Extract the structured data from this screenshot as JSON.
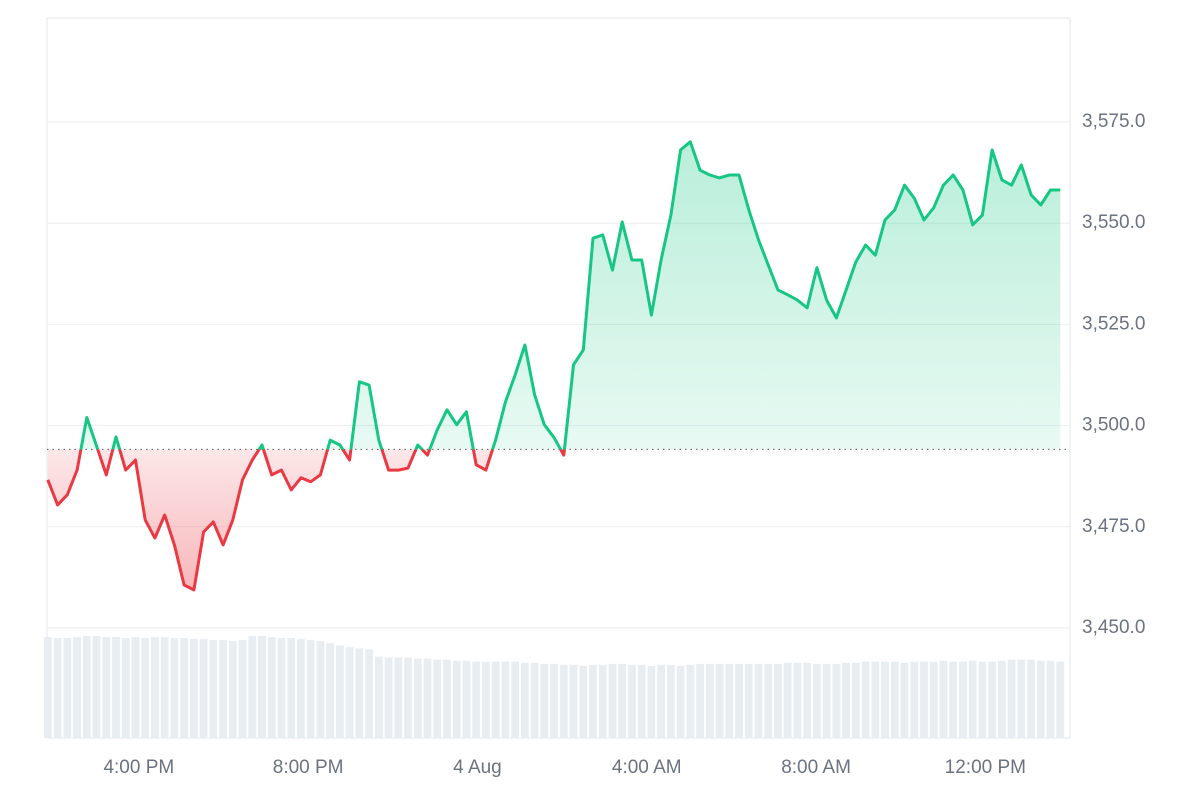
{
  "chart_data": {
    "type": "line",
    "x": [
      13.85,
      14.08,
      14.31,
      14.54,
      14.77,
      15,
      15.23,
      15.46,
      15.69,
      15.92,
      16.15,
      16.38,
      16.61,
      16.84,
      17.07,
      17.3,
      17.53,
      17.76,
      17.99,
      18.22,
      18.45,
      18.68,
      18.91,
      19.14,
      19.37,
      19.6,
      19.83,
      20.06,
      20.29,
      20.52,
      20.75,
      20.98,
      21.21,
      21.44,
      21.67,
      21.9,
      22.13,
      22.36,
      22.59,
      22.82,
      23.05,
      23.28,
      23.51,
      23.74,
      23.97,
      24.2,
      24.43,
      24.66,
      24.89,
      25.12,
      25.35,
      25.58,
      25.81,
      26.04,
      26.27,
      26.5,
      26.73,
      26.96,
      27.19,
      27.42,
      27.65,
      27.88,
      28.11,
      28.34,
      28.57,
      28.8,
      29.03,
      29.26,
      29.49,
      29.72,
      29.95,
      30.18,
      30.41,
      30.64,
      30.87,
      31.1,
      31.33,
      31.56,
      31.79,
      32.02,
      32.25,
      32.48,
      32.71,
      32.94,
      33.17,
      33.4,
      33.63,
      33.86,
      34.09,
      34.32,
      34.55,
      34.78,
      35.01,
      35.24,
      35.47,
      35.7,
      35.93,
      36.16,
      36.39,
      36.62,
      36.85,
      37.08,
      37.31,
      37.54,
      37.77
    ],
    "values": [
      3486.6,
      3480.4,
      3482.9,
      3489,
      3502,
      3495,
      3487.8,
      3497.2,
      3489,
      3491.5,
      3476.7,
      3472.2,
      3477.9,
      3470.5,
      3460.6,
      3459.4,
      3473.7,
      3476.2,
      3470.5,
      3476.7,
      3486.6,
      3491.5,
      3495.2,
      3487.8,
      3489,
      3484.1,
      3487.1,
      3486.1,
      3487.8,
      3496.4,
      3495.2,
      3491.5,
      3510.8,
      3510,
      3496.4,
      3489,
      3489,
      3489.5,
      3495.2,
      3492.7,
      3498.9,
      3503.9,
      3500.2,
      3503.4,
      3490.3,
      3489,
      3496.4,
      3505.8,
      3512.5,
      3519.9,
      3507.6,
      3500.2,
      3497,
      3492.7,
      3515,
      3518.7,
      3546.3,
      3547.1,
      3538.4,
      3550.3,
      3540.9,
      3540.9,
      3527.3,
      3540.9,
      3552,
      3568.1,
      3570.1,
      3563.1,
      3561.9,
      3561.2,
      3561.9,
      3561.9,
      3553.3,
      3545.9,
      3539.7,
      3533.5,
      3532.3,
      3531,
      3529.1,
      3539,
      3531,
      3526.6,
      3533.5,
      3540.4,
      3544.6,
      3542.1,
      3550.8,
      3553.3,
      3559.4,
      3556.2,
      3550.8,
      3553.8,
      3559.4,
      3561.9,
      3558.2,
      3549.6,
      3552,
      3568.1,
      3560.7,
      3559.4,
      3564.4,
      3557,
      3554.5,
      3558.2,
      3558.2
    ],
    "volume": [
      98,
      97,
      97,
      98,
      99,
      99,
      98,
      98,
      97,
      98,
      97,
      98,
      98,
      97,
      97,
      96,
      96,
      95,
      95,
      94,
      95,
      99,
      99,
      98,
      97,
      97,
      96,
      95,
      94,
      92,
      90,
      88,
      87,
      86,
      79,
      78,
      78,
      78,
      77,
      77,
      76,
      76,
      75,
      75,
      74,
      74,
      74,
      74,
      74,
      73,
      73,
      72,
      72,
      71,
      71,
      70,
      71,
      71,
      72,
      72,
      71,
      71,
      70,
      71,
      71,
      70,
      71,
      72,
      72,
      72,
      72,
      72,
      72,
      72,
      72,
      72,
      73,
      73,
      73,
      72,
      72,
      72,
      73,
      73,
      74,
      74,
      74,
      74,
      73,
      74,
      74,
      74,
      75,
      74,
      74,
      75,
      74,
      74,
      75,
      76,
      76,
      76,
      75,
      75,
      74
    ],
    "reference_line": 3494.1,
    "up_color": "#16c784",
    "down_color": "#ea3943",
    "volume_color": "#e8edf2",
    "xlim": [
      13.83,
      38.0
    ],
    "xticks": [
      {
        "value": 16,
        "label": "4:00 PM"
      },
      {
        "value": 20,
        "label": "8:00 PM"
      },
      {
        "value": 24,
        "label": "4 Aug"
      },
      {
        "value": 28,
        "label": "4:00 AM"
      },
      {
        "value": 32,
        "label": "8:00 AM"
      },
      {
        "value": 36,
        "label": "12:00 PM"
      }
    ],
    "ylim": [
      3422.8,
      3600.7
    ],
    "yticks": [
      {
        "value": 3450,
        "label": "3,450.0"
      },
      {
        "value": 3475,
        "label": "3,475.0"
      },
      {
        "value": 3500,
        "label": "3,500.0"
      },
      {
        "value": 3525,
        "label": "3,525.0"
      },
      {
        "value": 3550,
        "label": "3,550.0"
      },
      {
        "value": 3575,
        "label": "3,575.0"
      }
    ],
    "grid": true
  }
}
